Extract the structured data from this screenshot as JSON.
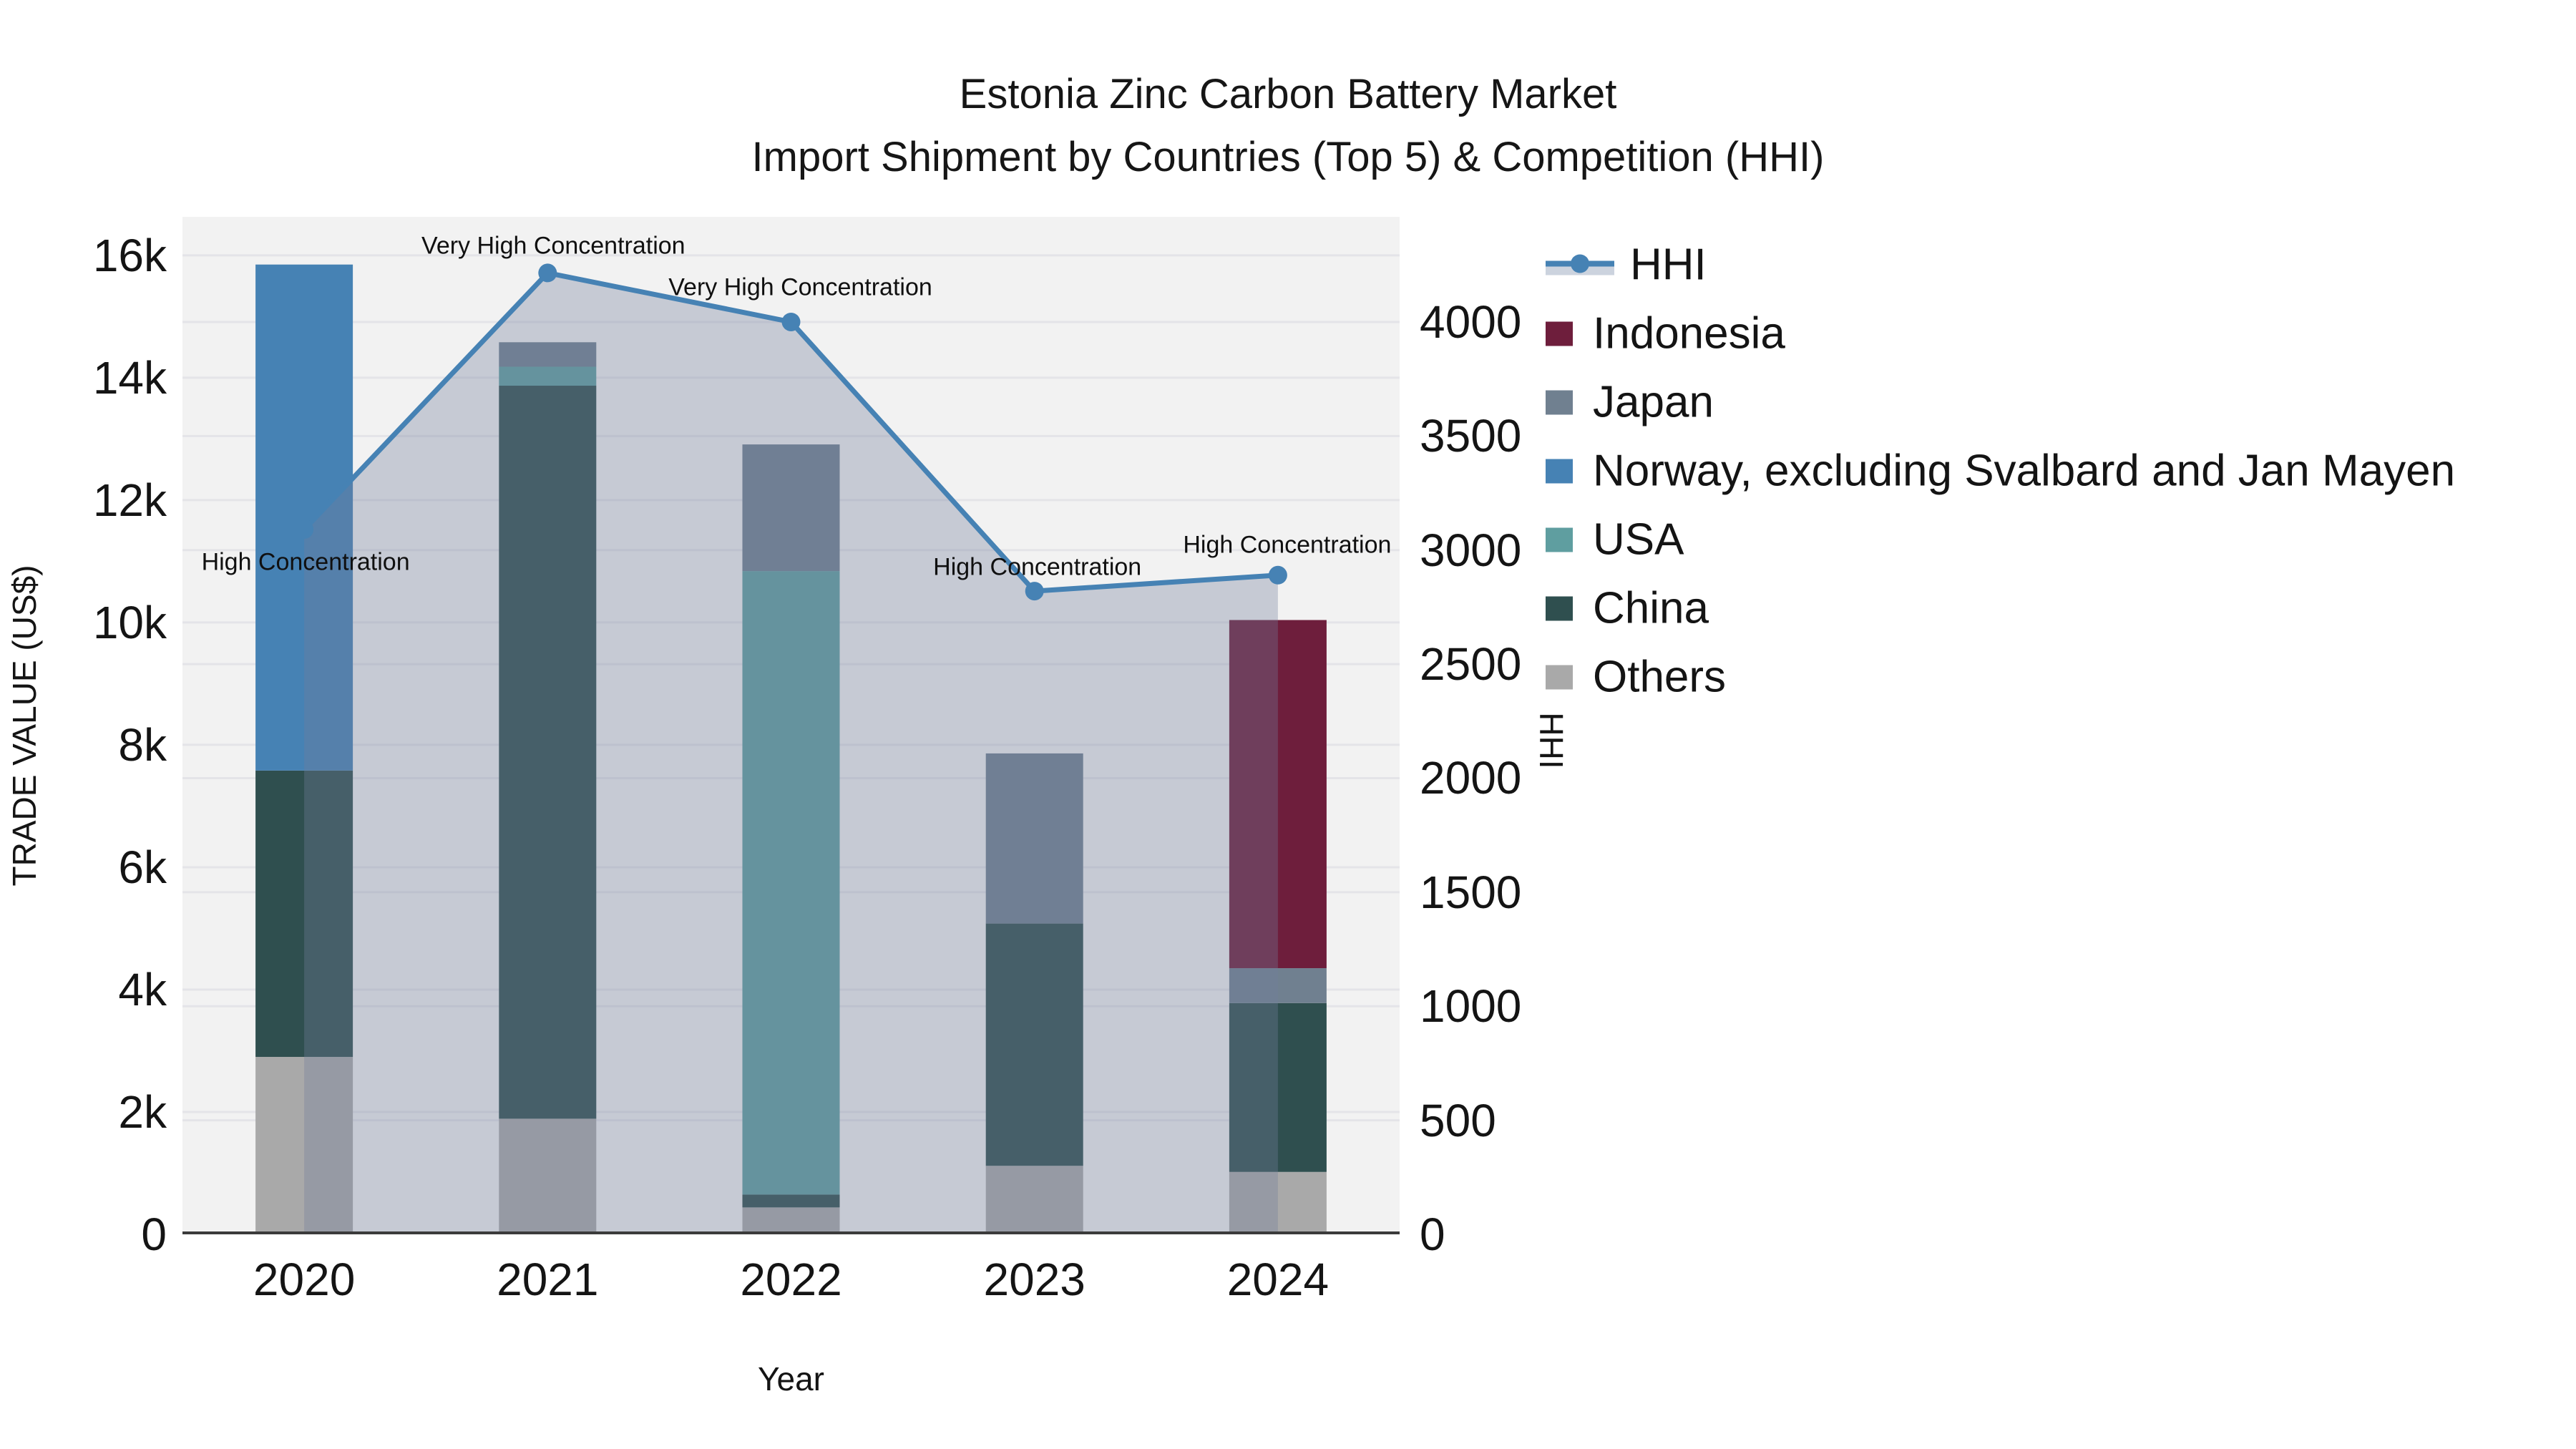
{
  "title": {
    "line1": "Estonia Zinc Carbon Battery Market",
    "line2": "Import Shipment by Countries (Top 5) & Competition (HHI)"
  },
  "axes": {
    "x": {
      "title": "Year",
      "categories": [
        "2020",
        "2021",
        "2022",
        "2023",
        "2024"
      ]
    },
    "y_left": {
      "title": "TRADE VALUE (US$)",
      "tick_labels": [
        "0",
        "2k",
        "4k",
        "6k",
        "8k",
        "10k",
        "12k",
        "14k",
        "16k"
      ],
      "tick_values": [
        0,
        2000,
        4000,
        6000,
        8000,
        10000,
        12000,
        14000,
        16000
      ],
      "range": [
        0,
        16630
      ]
    },
    "y_right": {
      "title": "HHI",
      "tick_labels": [
        "0",
        "500",
        "1000",
        "1500",
        "2000",
        "2500",
        "3000",
        "3500",
        "4000"
      ],
      "tick_values": [
        0,
        500,
        1000,
        1500,
        2000,
        2500,
        3000,
        3500,
        4000
      ],
      "range": [
        0,
        4461
      ]
    }
  },
  "legend": [
    {
      "label": "HHI",
      "color": "#4682B4",
      "kind": "line"
    },
    {
      "label": "Indonesia",
      "color": "#6E1E3C",
      "kind": "swatch"
    },
    {
      "label": "Japan",
      "color": "#708090",
      "kind": "swatch"
    },
    {
      "label": "Norway, excluding Svalbard and Jan Mayen",
      "color": "#4682B4",
      "kind": "swatch"
    },
    {
      "label": "USA",
      "color": "#5F9EA0",
      "kind": "swatch"
    },
    {
      "label": "China",
      "color": "#2F4F4F",
      "kind": "swatch"
    },
    {
      "label": "Others",
      "color": "#A9A9A9",
      "kind": "swatch"
    }
  ],
  "chart_data": {
    "type": "bar",
    "subtype": "stacked-bars-with-line-overlay",
    "categories": [
      "2020",
      "2021",
      "2022",
      "2023",
      "2024"
    ],
    "stack_order_bottom_to_top": [
      "Others",
      "China",
      "USA",
      "Norway, excluding Svalbard and Jan Mayen",
      "Japan",
      "Indonesia"
    ],
    "series": [
      {
        "name": "Indonesia",
        "color": "#6E1E3C",
        "values": [
          0,
          0,
          0,
          0,
          5690
        ]
      },
      {
        "name": "Japan",
        "color": "#708090",
        "values": [
          0,
          400,
          2070,
          2780,
          570
        ]
      },
      {
        "name": "Norway, excluding Svalbard and Jan Mayen",
        "color": "#4682B4",
        "values": [
          8270,
          0,
          0,
          0,
          0
        ]
      },
      {
        "name": "USA",
        "color": "#5F9EA0",
        "values": [
          0,
          310,
          10190,
          0,
          0
        ]
      },
      {
        "name": "China",
        "color": "#2F4F4F",
        "values": [
          4680,
          11980,
          210,
          3960,
          2760
        ]
      },
      {
        "name": "Others",
        "color": "#A9A9A9",
        "values": [
          2900,
          1890,
          440,
          1120,
          1020
        ]
      }
    ],
    "bar_totals": [
      15850,
      14580,
      12910,
      7860,
      10040
    ],
    "line_series": {
      "name": "HHI",
      "axis": "y_right",
      "color": "#4682B4",
      "fill_color": "rgba(113,125,155,0.34)",
      "values": [
        3090,
        4215,
        4000,
        2820,
        2890
      ]
    },
    "annotations": [
      {
        "category": "2020",
        "text": "High Concentration"
      },
      {
        "category": "2021",
        "text": "Very High Concentration"
      },
      {
        "category": "2022",
        "text": "Very High Concentration"
      },
      {
        "category": "2023",
        "text": "High Concentration"
      },
      {
        "category": "2024",
        "text": "High Concentration"
      }
    ],
    "title": "Estonia Zinc Carbon Battery Market — Import Shipment by Countries (Top 5) & Competition (HHI)",
    "xlabel": "Year",
    "ylabel": "TRADE VALUE (US$)",
    "ylabel_right": "HHI",
    "grid": true,
    "legend_position": "right"
  }
}
